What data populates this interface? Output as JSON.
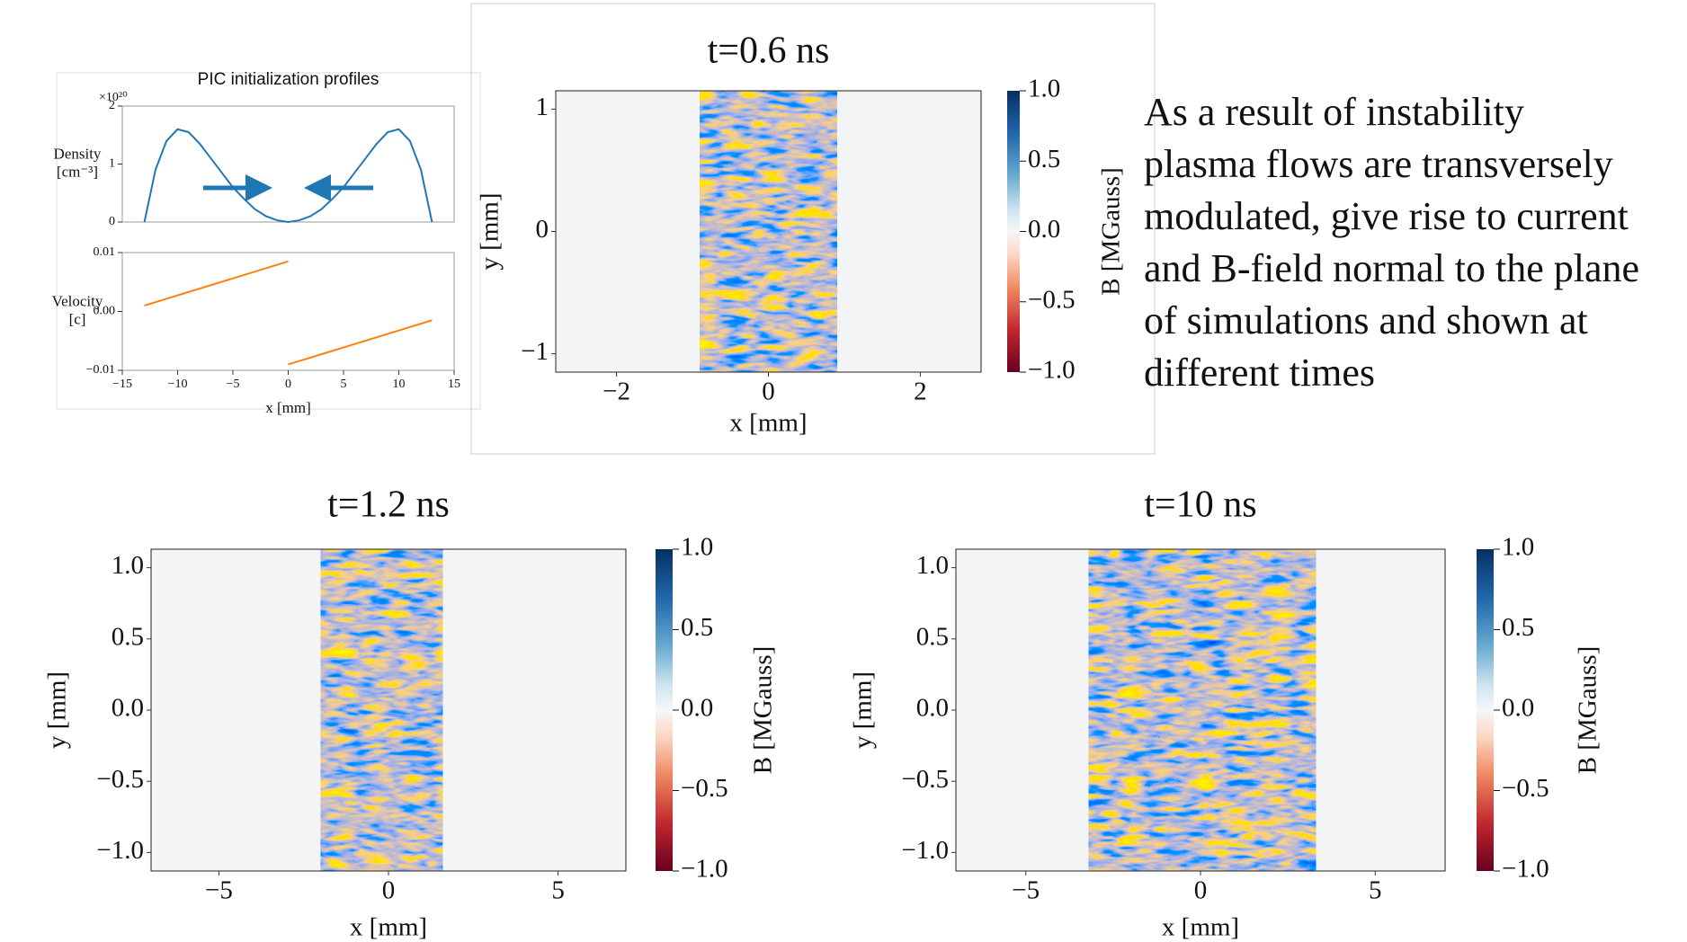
{
  "slide_text": [
    "As a result of instability",
    "plasma flows are transversely",
    "modulated, give rise to current",
    "and B-field normal to the plane",
    "of simulations and shown at",
    "different times"
  ],
  "chart_data": [
    {
      "type": "line",
      "title": "PIC initialization profiles",
      "ylabel": [
        "Density",
        "[cm⁻³]"
      ],
      "y_multiplier": "×10²⁰",
      "color": "#1f77b4",
      "x": [
        -13,
        -12,
        -11,
        -10,
        -9,
        -8,
        -7,
        -6,
        -5,
        -4,
        -3,
        -2,
        -1,
        0,
        1,
        2,
        3,
        4,
        5,
        6,
        7,
        8,
        9,
        10,
        11,
        12,
        13
      ],
      "values": [
        0,
        0.9,
        1.4,
        1.6,
        1.55,
        1.35,
        1.1,
        0.85,
        0.6,
        0.4,
        0.22,
        0.1,
        0.03,
        0,
        0.03,
        0.1,
        0.22,
        0.4,
        0.6,
        0.85,
        1.1,
        1.35,
        1.55,
        1.6,
        1.4,
        0.9,
        0
      ],
      "xlim": [
        -15,
        15
      ],
      "ylim": [
        0,
        2
      ],
      "yticks": [
        0,
        1,
        2
      ]
    },
    {
      "type": "line",
      "ylabel": [
        "Velocity",
        "[c]"
      ],
      "xlabel": "x [mm]",
      "color": "#ff7f0e",
      "x": [
        -13,
        0,
        0,
        0,
        13
      ],
      "values": [
        0.001,
        0.0085,
        null,
        -0.009,
        -0.0015
      ],
      "xlim": [
        -15,
        15
      ],
      "xticks": [
        {
          "value": -15,
          "label": "−15"
        },
        {
          "value": -10,
          "label": "−10"
        },
        {
          "value": -5,
          "label": "−5"
        },
        0,
        5,
        10,
        15
      ],
      "ylim": [
        -0.01,
        0.01
      ],
      "yticks": [
        {
          "value": -0.01,
          "label": "−0.01"
        },
        {
          "value": 0,
          "label": "0.00"
        },
        0.01
      ]
    },
    {
      "type": "heatmap",
      "title": "t=0.6 ns",
      "xlabel": "x [mm]",
      "ylabel": "y [mm]",
      "colorbar_label": "B [MGauss]",
      "xlim": [
        -2.8,
        2.8
      ],
      "xticks": [
        {
          "value": -2,
          "label": "−2"
        },
        0,
        2
      ],
      "ylim": [
        -1.15,
        1.15
      ],
      "yticks": [
        {
          "value": -1,
          "label": "−1"
        },
        0,
        1
      ],
      "clim": [
        -1,
        1
      ],
      "cticks": [
        {
          "value": -1,
          "label": "−1.0"
        },
        {
          "value": -0.5,
          "label": "−0.5"
        },
        {
          "value": 0,
          "label": "0.0"
        },
        0.5,
        {
          "value": 1,
          "label": "1.0"
        }
      ]
    },
    {
      "type": "heatmap",
      "title": "t=1.2 ns",
      "xlabel": "x [mm]",
      "ylabel": "y [mm]",
      "colorbar_label": "B [MGauss]",
      "xlim": [
        -7,
        7
      ],
      "xticks": [
        {
          "value": -5,
          "label": "−5"
        },
        0,
        5
      ],
      "ylim": [
        -1.13,
        1.13
      ],
      "yticks": [
        {
          "value": -1,
          "label": "−1.0"
        },
        {
          "value": -0.5,
          "label": "−0.5"
        },
        {
          "value": 0,
          "label": "0.0"
        },
        0.5,
        {
          "value": 1,
          "label": "1.0"
        }
      ],
      "clim": [
        -1,
        1
      ],
      "cticks": [
        {
          "value": -1,
          "label": "−1.0"
        },
        {
          "value": -0.5,
          "label": "−0.5"
        },
        {
          "value": 0,
          "label": "0.0"
        },
        0.5,
        {
          "value": 1,
          "label": "1.0"
        }
      ]
    },
    {
      "type": "heatmap",
      "title": "t=10 ns",
      "xlabel": "x [mm]",
      "ylabel": "y [mm]",
      "colorbar_label": "B [MGauss]",
      "xlim": [
        -7,
        7
      ],
      "xticks": [
        {
          "value": -5,
          "label": "−5"
        },
        0,
        5
      ],
      "ylim": [
        -1.13,
        1.13
      ],
      "yticks": [
        {
          "value": -1,
          "label": "−1.0"
        },
        {
          "value": -0.5,
          "label": "−0.5"
        },
        {
          "value": 0,
          "label": "0.0"
        },
        0.5,
        {
          "value": 1,
          "label": "1.0"
        }
      ],
      "clim": [
        -1,
        1
      ],
      "cticks": [
        {
          "value": -1,
          "label": "−1.0"
        },
        {
          "value": -0.5,
          "label": "−0.5"
        },
        {
          "value": 0,
          "label": "0.0"
        },
        0.5,
        {
          "value": 1,
          "label": "1.0"
        }
      ]
    }
  ]
}
